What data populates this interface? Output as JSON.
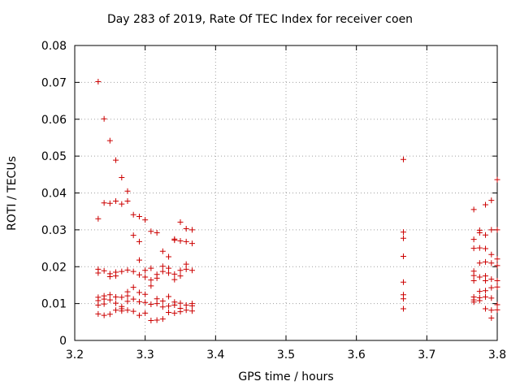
{
  "chart_data": {
    "type": "scatter",
    "title": "Day 283 of 2019, Rate Of TEC Index for receiver coen",
    "xlabel": "GPS time / hours",
    "ylabel": "ROTI / TECUs",
    "xlim": [
      3.2,
      3.8
    ],
    "ylim": [
      0,
      0.08
    ],
    "xticks": [
      "3.2",
      "3.3",
      "3.4",
      "3.5",
      "3.6",
      "3.7",
      "3.8"
    ],
    "yticks": [
      "0",
      "0.01",
      "0.02",
      "0.03",
      "0.04",
      "0.05",
      "0.06",
      "0.07",
      "0.08"
    ],
    "grid": true,
    "marker": "+",
    "color": "#cc0000",
    "series": [
      {
        "name": "ROTI",
        "points": [
          [
            3.2333,
            0.0702
          ],
          [
            3.2417,
            0.0601
          ],
          [
            3.25,
            0.0542
          ],
          [
            3.2583,
            0.0489
          ],
          [
            3.2667,
            0.0442
          ],
          [
            3.2333,
            0.033
          ],
          [
            3.2417,
            0.0373
          ],
          [
            3.25,
            0.0372
          ],
          [
            3.2583,
            0.0378
          ],
          [
            3.2667,
            0.037
          ],
          [
            3.275,
            0.0405
          ],
          [
            3.275,
            0.0378
          ],
          [
            3.2833,
            0.0341
          ],
          [
            3.2917,
            0.0336
          ],
          [
            3.3,
            0.0327
          ],
          [
            3.2833,
            0.0285
          ],
          [
            3.2917,
            0.0268
          ],
          [
            3.3083,
            0.0296
          ],
          [
            3.3167,
            0.0292
          ],
          [
            3.325,
            0.0242
          ],
          [
            3.3333,
            0.0227
          ],
          [
            3.3417,
            0.0275
          ],
          [
            3.35,
            0.0321
          ],
          [
            3.3583,
            0.0303
          ],
          [
            3.3667,
            0.03
          ],
          [
            3.3417,
            0.0272
          ],
          [
            3.35,
            0.027
          ],
          [
            3.3583,
            0.0268
          ],
          [
            3.3667,
            0.0263
          ],
          [
            3.2917,
            0.0218
          ],
          [
            3.2333,
            0.0193
          ],
          [
            3.2333,
            0.0183
          ],
          [
            3.2417,
            0.0189
          ],
          [
            3.25,
            0.0181
          ],
          [
            3.25,
            0.0173
          ],
          [
            3.2583,
            0.0185
          ],
          [
            3.2583,
            0.0175
          ],
          [
            3.2667,
            0.0187
          ],
          [
            3.275,
            0.0191
          ],
          [
            3.2833,
            0.0187
          ],
          [
            3.2917,
            0.0178
          ],
          [
            3.3,
            0.019
          ],
          [
            3.3,
            0.0172
          ],
          [
            3.3083,
            0.0196
          ],
          [
            3.3083,
            0.0164
          ],
          [
            3.3167,
            0.0179
          ],
          [
            3.3167,
            0.0169
          ],
          [
            3.325,
            0.0201
          ],
          [
            3.325,
            0.0187
          ],
          [
            3.3333,
            0.0196
          ],
          [
            3.3333,
            0.0183
          ],
          [
            3.3417,
            0.018
          ],
          [
            3.3417,
            0.0165
          ],
          [
            3.35,
            0.019
          ],
          [
            3.35,
            0.0175
          ],
          [
            3.3583,
            0.0207
          ],
          [
            3.3583,
            0.0193
          ],
          [
            3.3667,
            0.019
          ],
          [
            3.2333,
            0.0117
          ],
          [
            3.2333,
            0.0108
          ],
          [
            3.2333,
            0.0096
          ],
          [
            3.2417,
            0.0121
          ],
          [
            3.2417,
            0.0112
          ],
          [
            3.2417,
            0.0099
          ],
          [
            3.25,
            0.0124
          ],
          [
            3.25,
            0.011
          ],
          [
            3.2583,
            0.0118
          ],
          [
            3.2583,
            0.0101
          ],
          [
            3.2667,
            0.0117
          ],
          [
            3.2667,
            0.0092
          ],
          [
            3.275,
            0.0132
          ],
          [
            3.275,
            0.0121
          ],
          [
            3.275,
            0.0106
          ],
          [
            3.2833,
            0.0144
          ],
          [
            3.2833,
            0.0112
          ],
          [
            3.2917,
            0.013
          ],
          [
            3.2917,
            0.0105
          ],
          [
            3.3,
            0.0103
          ],
          [
            3.3,
            0.0125
          ],
          [
            3.3083,
            0.0148
          ],
          [
            3.3083,
            0.0098
          ],
          [
            3.3167,
            0.0113
          ],
          [
            3.3167,
            0.01
          ],
          [
            3.325,
            0.0107
          ],
          [
            3.325,
            0.0091
          ],
          [
            3.3333,
            0.0119
          ],
          [
            3.3333,
            0.0093
          ],
          [
            3.3417,
            0.0104
          ],
          [
            3.3417,
            0.0096
          ],
          [
            3.35,
            0.0101
          ],
          [
            3.35,
            0.0087
          ],
          [
            3.3583,
            0.0096
          ],
          [
            3.3667,
            0.01
          ],
          [
            3.3667,
            0.0094
          ],
          [
            3.2333,
            0.0072
          ],
          [
            3.2417,
            0.0068
          ],
          [
            3.25,
            0.0071
          ],
          [
            3.2583,
            0.0082
          ],
          [
            3.2667,
            0.008
          ],
          [
            3.2667,
            0.0086
          ],
          [
            3.275,
            0.0082
          ],
          [
            3.2833,
            0.0079
          ],
          [
            3.2917,
            0.0068
          ],
          [
            3.3,
            0.0074
          ],
          [
            3.3083,
            0.0054
          ],
          [
            3.3167,
            0.0055
          ],
          [
            3.325,
            0.0058
          ],
          [
            3.3333,
            0.0076
          ],
          [
            3.3417,
            0.0074
          ],
          [
            3.35,
            0.0078
          ],
          [
            3.3583,
            0.0082
          ],
          [
            3.3667,
            0.008
          ],
          [
            3.6667,
            0.0491
          ],
          [
            3.6667,
            0.0294
          ],
          [
            3.6667,
            0.0277
          ],
          [
            3.6667,
            0.0228
          ],
          [
            3.6667,
            0.0158
          ],
          [
            3.6667,
            0.0124
          ],
          [
            3.6667,
            0.0113
          ],
          [
            3.6667,
            0.0086
          ],
          [
            3.7667,
            0.0355
          ],
          [
            3.7667,
            0.0274
          ],
          [
            3.7667,
            0.025
          ],
          [
            3.7667,
            0.0188
          ],
          [
            3.7667,
            0.0176
          ],
          [
            3.7667,
            0.0162
          ],
          [
            3.7667,
            0.0118
          ],
          [
            3.7667,
            0.011
          ],
          [
            3.7667,
            0.0104
          ],
          [
            3.775,
            0.0299
          ],
          [
            3.775,
            0.0292
          ],
          [
            3.775,
            0.0251
          ],
          [
            3.775,
            0.021
          ],
          [
            3.775,
            0.0172
          ],
          [
            3.775,
            0.0133
          ],
          [
            3.775,
            0.0116
          ],
          [
            3.775,
            0.0108
          ],
          [
            3.7833,
            0.0368
          ],
          [
            3.7833,
            0.0286
          ],
          [
            3.7833,
            0.0249
          ],
          [
            3.7833,
            0.0213
          ],
          [
            3.7833,
            0.0175
          ],
          [
            3.7833,
            0.0162
          ],
          [
            3.7833,
            0.0135
          ],
          [
            3.7833,
            0.0118
          ],
          [
            3.7833,
            0.0086
          ],
          [
            3.7917,
            0.038
          ],
          [
            3.7917,
            0.03
          ],
          [
            3.7917,
            0.0233
          ],
          [
            3.7917,
            0.021
          ],
          [
            3.7917,
            0.0166
          ],
          [
            3.7917,
            0.0143
          ],
          [
            3.7917,
            0.0115
          ],
          [
            3.7917,
            0.0082
          ],
          [
            3.7917,
            0.0061
          ],
          [
            3.8,
            0.0436
          ],
          [
            3.8,
            0.03
          ],
          [
            3.8,
            0.0221
          ],
          [
            3.8,
            0.0203
          ],
          [
            3.8,
            0.0162
          ],
          [
            3.8,
            0.0145
          ],
          [
            3.8,
            0.0097
          ],
          [
            3.8,
            0.0083
          ]
        ]
      }
    ]
  }
}
